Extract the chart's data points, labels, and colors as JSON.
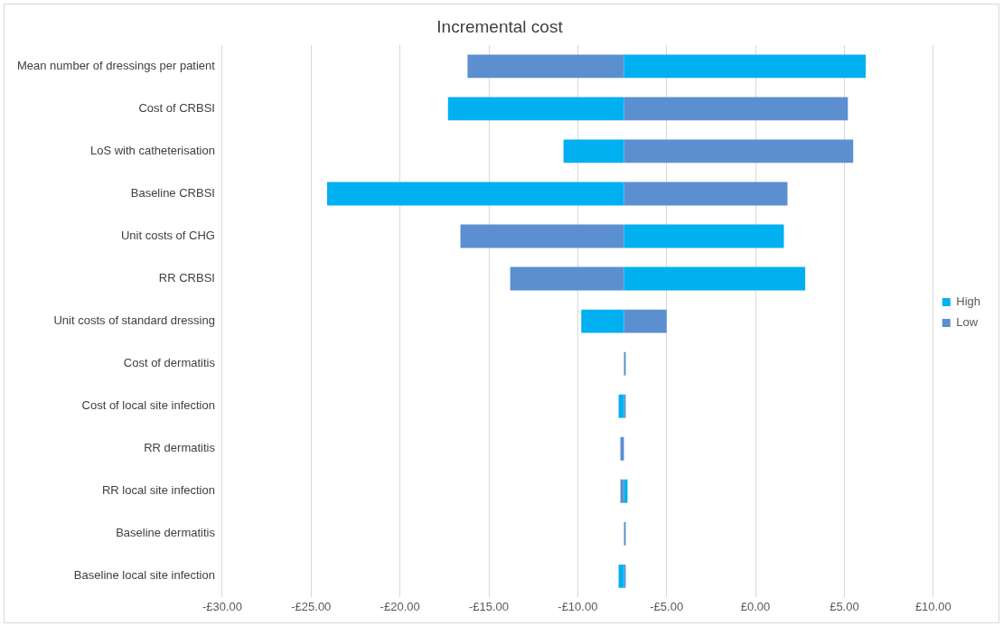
{
  "chart_data": {
    "type": "bar",
    "orientation": "horizontal",
    "title": "Incremental cost",
    "categories": [
      "Mean number of dressings per patient",
      "Cost of CRBSI",
      "LoS with catheterisation",
      "Baseline CRBSI",
      "Unit costs of CHG",
      "RR CRBSI",
      "Unit costs of standard dressing",
      "Cost of dermatitis",
      "Cost of local site infection",
      "RR dermatitis",
      "RR local site infection",
      "Baseline dermatitis",
      "Baseline local site infection"
    ],
    "series": [
      {
        "name": "High",
        "color": "#00b0f0",
        "base": [
          -7.4,
          -7.4,
          -7.4,
          -7.4,
          -7.4,
          -7.4,
          -7.4,
          null,
          -7.4,
          null,
          -7.4,
          null,
          -7.4
        ],
        "values": [
          13.6,
          -9.9,
          -3.4,
          -16.7,
          9.0,
          10.2,
          -2.4,
          null,
          -0.3,
          null,
          0.2,
          null,
          -0.3
        ]
      },
      {
        "name": "Low",
        "color": "#5b8fd0",
        "base": [
          -7.4,
          -7.4,
          -7.4,
          -7.4,
          -7.4,
          -7.4,
          -7.4,
          -7.4,
          -7.4,
          -7.4,
          -7.4,
          -7.4,
          -7.4
        ],
        "values": [
          -8.8,
          12.6,
          12.9,
          9.2,
          -9.2,
          -6.4,
          2.4,
          0.1,
          0.1,
          -0.2,
          -0.2,
          0.1,
          0.1
        ]
      }
    ],
    "xlim": [
      -30,
      10
    ],
    "xticks": [
      {
        "value": -30,
        "label": "-£30.00"
      },
      {
        "value": -25,
        "label": "-£25.00"
      },
      {
        "value": -20,
        "label": "-£20.00"
      },
      {
        "value": -15,
        "label": "-£15.00"
      },
      {
        "value": -10,
        "label": "-£10.00"
      },
      {
        "value": -5,
        "label": "-£5.00"
      },
      {
        "value": 0,
        "label": "£0.00"
      },
      {
        "value": 5,
        "label": "£5.00"
      },
      {
        "value": 10,
        "label": "£10.00"
      }
    ],
    "grid": "x",
    "legend": "right"
  }
}
